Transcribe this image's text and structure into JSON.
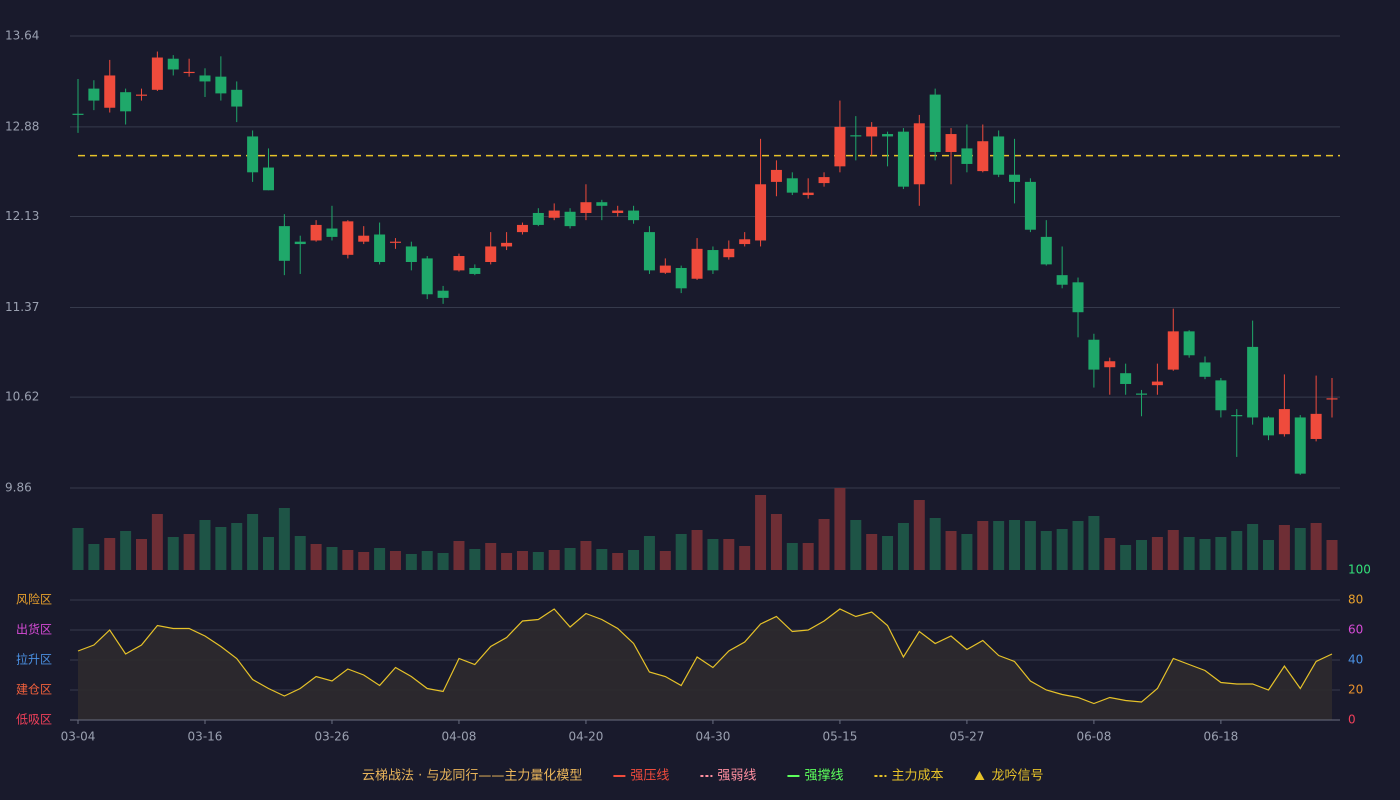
{
  "chart_data": [
    {
      "type": "candlestick",
      "up_color": "#ef4b3c",
      "down_color": "#1fa86a",
      "ylim": [
        9.86,
        13.64
      ],
      "yticks": [
        9.86,
        10.62,
        11.37,
        12.13,
        12.88,
        13.64
      ],
      "grid": true,
      "open": [
        12.99,
        13.2,
        13.04,
        13.17,
        13.14,
        13.19,
        13.45,
        13.33,
        13.31,
        13.3,
        13.19,
        12.8,
        12.54,
        12.05,
        11.92,
        11.93,
        12.03,
        11.81,
        11.92,
        11.98,
        11.91,
        11.88,
        11.78,
        11.51,
        11.68,
        11.7,
        11.75,
        11.88,
        12.0,
        12.16,
        12.12,
        12.17,
        12.16,
        12.25,
        12.16,
        12.18,
        12.0,
        11.66,
        11.7,
        11.61,
        11.85,
        11.79,
        11.9,
        11.93,
        12.42,
        12.45,
        12.31,
        12.41,
        12.55,
        12.81,
        12.8,
        12.82,
        12.84,
        12.4,
        13.15,
        12.67,
        12.7,
        12.51,
        12.8,
        12.48,
        12.42,
        11.96,
        11.64,
        11.58,
        11.1,
        10.87,
        10.82,
        10.65,
        10.72,
        10.85,
        11.17,
        10.91,
        10.76,
        10.47,
        11.04,
        10.45,
        10.31,
        10.45,
        10.27,
        10.6
      ],
      "high": [
        13.28,
        13.27,
        13.44,
        13.2,
        13.2,
        13.51,
        13.48,
        13.45,
        13.37,
        13.47,
        13.26,
        12.85,
        12.7,
        12.15,
        11.97,
        12.1,
        12.22,
        12.1,
        12.05,
        12.08,
        11.95,
        11.92,
        11.8,
        11.55,
        11.82,
        11.73,
        12.0,
        12.0,
        12.08,
        12.2,
        12.24,
        12.2,
        12.4,
        12.27,
        12.22,
        12.22,
        12.05,
        11.78,
        11.72,
        11.95,
        11.88,
        11.93,
        12.0,
        12.78,
        12.6,
        12.5,
        12.45,
        12.5,
        13.1,
        12.97,
        12.92,
        12.84,
        12.87,
        12.98,
        13.2,
        12.87,
        12.9,
        12.9,
        12.85,
        12.78,
        12.45,
        12.1,
        11.88,
        11.62,
        11.15,
        10.95,
        10.9,
        10.68,
        10.9,
        11.36,
        11.18,
        10.96,
        10.78,
        10.52,
        11.26,
        10.46,
        10.81,
        10.47,
        10.8,
        10.78
      ],
      "low": [
        12.83,
        13.02,
        13.0,
        12.9,
        13.1,
        13.18,
        13.31,
        13.3,
        13.13,
        13.1,
        12.92,
        12.42,
        12.35,
        11.64,
        11.65,
        11.92,
        11.93,
        11.78,
        11.9,
        11.73,
        11.86,
        11.68,
        11.44,
        11.4,
        11.67,
        11.64,
        11.73,
        11.85,
        11.98,
        12.05,
        12.1,
        12.03,
        12.1,
        12.1,
        12.13,
        12.07,
        11.65,
        11.65,
        11.49,
        11.6,
        11.65,
        11.77,
        11.88,
        11.88,
        12.3,
        12.31,
        12.28,
        12.38,
        12.5,
        12.6,
        12.64,
        12.55,
        12.36,
        12.22,
        12.6,
        12.4,
        12.5,
        12.5,
        12.46,
        12.24,
        12.0,
        11.72,
        11.53,
        11.12,
        10.7,
        10.64,
        10.64,
        10.46,
        10.64,
        10.84,
        10.95,
        10.77,
        10.45,
        10.12,
        10.39,
        10.26,
        10.29,
        9.97,
        10.25,
        10.45
      ],
      "close": [
        12.98,
        13.1,
        13.31,
        13.01,
        13.15,
        13.46,
        13.36,
        13.34,
        13.26,
        13.16,
        13.05,
        12.5,
        12.35,
        11.76,
        11.9,
        12.06,
        11.96,
        12.09,
        11.97,
        11.75,
        11.92,
        11.75,
        11.48,
        11.45,
        11.8,
        11.65,
        11.88,
        11.91,
        12.06,
        12.06,
        12.18,
        12.05,
        12.25,
        12.22,
        12.18,
        12.1,
        11.68,
        11.72,
        11.53,
        11.86,
        11.68,
        11.86,
        11.94,
        12.4,
        12.52,
        12.33,
        12.33,
        12.46,
        12.88,
        12.8,
        12.88,
        12.8,
        12.38,
        12.91,
        12.67,
        12.82,
        12.57,
        12.76,
        12.48,
        12.42,
        12.02,
        11.73,
        11.56,
        11.33,
        10.85,
        10.92,
        10.73,
        10.64,
        10.75,
        11.17,
        10.97,
        10.79,
        10.51,
        10.46,
        10.45,
        10.3,
        10.52,
        9.98,
        10.48,
        10.61
      ],
      "lines": [
        {
          "name": "主力成本",
          "value": 12.64,
          "color": "#e6c229",
          "style": "dashed"
        }
      ]
    },
    {
      "type": "volume",
      "up_color": "#6e2e35",
      "down_color": "#1e5446",
      "values": [
        42,
        26,
        32,
        39,
        31,
        56,
        33,
        36,
        50,
        43,
        47,
        56,
        33,
        62,
        34,
        26,
        23,
        20,
        18,
        22,
        19,
        16,
        19,
        17,
        29,
        21,
        27,
        17,
        19,
        18,
        20,
        22,
        29,
        21,
        17,
        20,
        34,
        19,
        36,
        40,
        31,
        31,
        24,
        75,
        56,
        27,
        27,
        51,
        82,
        50,
        36,
        34,
        47,
        70,
        52,
        39,
        36,
        49,
        49,
        50,
        49,
        39,
        41,
        49,
        54,
        32,
        25,
        30,
        33,
        40,
        33,
        31,
        33,
        39,
        46,
        30,
        45,
        42,
        47,
        30
      ]
    },
    {
      "type": "line",
      "color": "#e6c229",
      "fill": "#2d2a2d",
      "categories": [
        "03-04",
        null,
        null,
        null,
        null,
        null,
        null,
        null,
        "03-16",
        null,
        null,
        null,
        null,
        null,
        null,
        null,
        "03-26",
        null,
        null,
        null,
        null,
        null,
        null,
        null,
        "04-08",
        null,
        null,
        null,
        null,
        null,
        null,
        null,
        "04-20",
        null,
        null,
        null,
        null,
        null,
        null,
        null,
        "04-30",
        null,
        null,
        null,
        null,
        null,
        null,
        null,
        "05-15",
        null,
        null,
        null,
        null,
        null,
        null,
        null,
        "05-27",
        null,
        null,
        null,
        null,
        null,
        null,
        null,
        "06-08",
        null,
        null,
        null,
        null,
        null,
        null,
        null,
        "06-18",
        null,
        null,
        null,
        null,
        null,
        null,
        null
      ],
      "values": [
        46,
        50,
        60,
        44,
        50,
        63,
        61,
        61,
        56,
        49,
        41,
        27,
        21,
        16,
        21,
        29,
        26,
        34,
        30,
        23,
        35,
        29,
        21,
        19,
        41,
        37,
        49,
        55,
        66,
        67,
        74,
        62,
        71,
        67,
        61,
        51,
        32,
        29,
        23,
        42,
        35,
        46,
        52,
        64,
        69,
        59,
        60,
        66,
        74,
        69,
        72,
        63,
        42,
        59,
        51,
        56,
        47,
        53,
        43,
        39,
        26,
        20,
        17,
        15,
        11,
        15,
        13,
        12,
        21,
        41,
        37,
        33,
        25,
        24,
        24,
        20,
        36,
        21,
        39,
        44
      ],
      "ylim": [
        0,
        100
      ],
      "yticks": [
        0,
        20,
        40,
        60,
        80,
        100
      ],
      "ytick_colors": [
        "#f0405a",
        "#e8902c",
        "#4a90e2",
        "#d64bd6",
        "#e8a02c",
        "#33e07a"
      ],
      "zones": [
        {
          "label": "风险区",
          "value": 80,
          "color": "#e8a02c"
        },
        {
          "label": "出货区",
          "value": 60,
          "color": "#d64bd6"
        },
        {
          "label": "拉升区",
          "value": 40,
          "color": "#4a90e2"
        },
        {
          "label": "建仓区",
          "value": 20,
          "color": "#f0603c"
        },
        {
          "label": "低吸区",
          "value": 0,
          "color": "#f0405a"
        }
      ]
    }
  ],
  "legend": {
    "title": "云梯战法 · 与龙同行——主力量化模型",
    "title_color": "#e8b45a",
    "items": [
      {
        "name": "强压线",
        "color": "#ef4b3c",
        "style": "solid"
      },
      {
        "name": "强弱线",
        "color": "#ff8fa0",
        "style": "dashed"
      },
      {
        "name": "强撑线",
        "color": "#5cff5c",
        "style": "solid"
      },
      {
        "name": "主力成本",
        "color": "#e6c229",
        "style": "dashed"
      },
      {
        "name": "龙吟信号",
        "color": "#e6c229",
        "style": "triangle"
      }
    ]
  }
}
